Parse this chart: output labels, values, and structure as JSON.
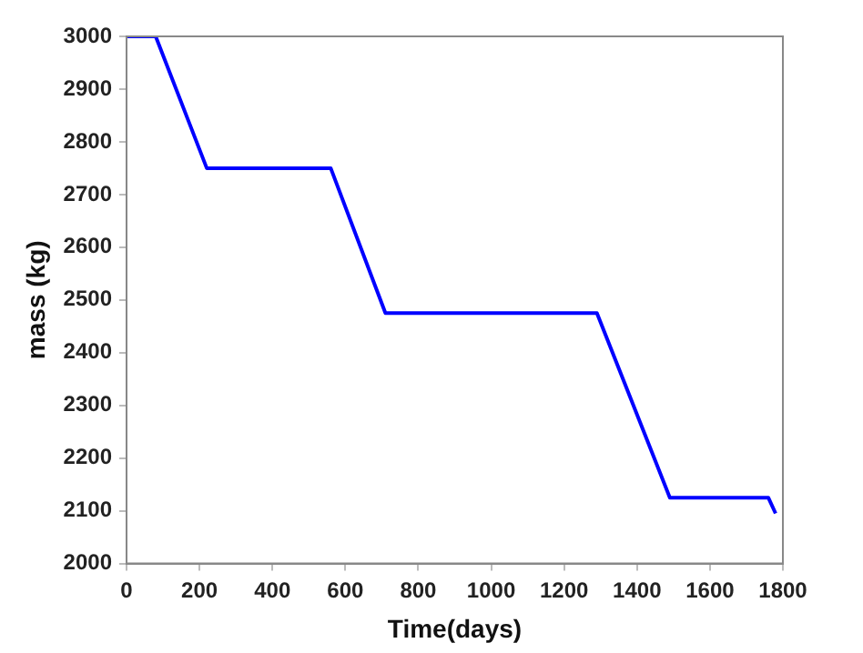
{
  "chart_data": {
    "type": "line",
    "xlabel": "Time(days)",
    "ylabel": "mass (kg)",
    "x": [
      0,
      80,
      220,
      560,
      710,
      1290,
      1490,
      1760,
      1780
    ],
    "series": [
      {
        "color": "#0000ff",
        "values": [
          3000,
          3000,
          2750,
          2750,
          2475,
          2475,
          2125,
          2125,
          2095
        ]
      }
    ],
    "xlim": [
      0,
      1800
    ],
    "xticks": [
      0,
      200,
      400,
      600,
      800,
      1000,
      1200,
      1400,
      1600,
      1800
    ],
    "ylim": [
      2000,
      3000
    ],
    "yticks": [
      2000,
      2100,
      2200,
      2300,
      2400,
      2500,
      2600,
      2700,
      2800,
      2900,
      3000
    ],
    "grid": false,
    "legend": false,
    "marker": "none",
    "line_style": "solid"
  }
}
